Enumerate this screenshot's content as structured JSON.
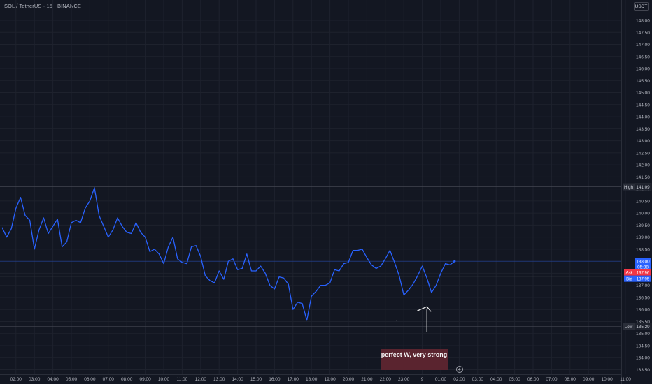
{
  "header": {
    "symbol_title": "SOL / TetherUS · 15 · BINANCE",
    "currency": "USDT"
  },
  "colors": {
    "background": "#131722",
    "line": "#2962ff",
    "grid": "#1e222d",
    "axis_text": "#b2b5be",
    "label_bg": "#2a2e39",
    "last_price_bg": "#2962ff",
    "ask": "#f23645",
    "bid": "#2962ff",
    "annotation_bg": "#5e2530"
  },
  "chart_data": {
    "type": "line",
    "ylim": [
      133.2,
      148.6
    ],
    "y_ticks": [
      "148.00",
      "147.50",
      "147.00",
      "146.50",
      "146.00",
      "145.50",
      "145.00",
      "144.50",
      "144.00",
      "143.50",
      "143.00",
      "142.50",
      "142.00",
      "141.50",
      "141.00",
      "140.50",
      "140.00",
      "139.50",
      "139.00",
      "138.50",
      "138.00",
      "137.50",
      "137.00",
      "136.50",
      "136.00",
      "135.50",
      "135.00",
      "134.50",
      "134.00",
      "133.50"
    ],
    "x_tick_labels": [
      "02:00",
      "03:00",
      "04:00",
      "05:00",
      "06:00",
      "07:00",
      "08:00",
      "09:00",
      "10:00",
      "11:00",
      "12:00",
      "13:00",
      "14:00",
      "15:00",
      "16:00",
      "17:00",
      "18:00",
      "19:00",
      "20:00",
      "21:00",
      "22:00",
      "23:00",
      "9",
      "01:00",
      "02:00",
      "03:00",
      "04:00",
      "05:00",
      "06:00",
      "07:00",
      "08:00",
      "09:00",
      "10:00",
      "11:00"
    ],
    "x_tick_index": [
      3,
      7,
      11,
      15,
      19,
      23,
      27,
      31,
      35,
      39,
      43,
      47,
      51,
      55,
      59,
      63,
      67,
      71,
      75,
      79,
      83,
      87,
      91,
      95,
      99,
      103,
      107,
      111,
      115,
      119,
      123,
      127,
      131,
      135
    ],
    "x_first_tick_pos": 4.5,
    "x_tick_spacing_per_hour": 4,
    "series": [
      {
        "values": [
          139.4,
          139.0,
          139.35,
          140.2,
          140.65,
          139.9,
          139.7,
          138.5,
          139.3,
          139.8,
          139.15,
          139.45,
          139.75,
          138.6,
          138.8,
          139.6,
          139.7,
          139.6,
          140.2,
          140.5,
          141.05,
          139.9,
          139.45,
          139.0,
          139.3,
          139.8,
          139.45,
          139.2,
          139.15,
          139.6,
          139.2,
          139.0,
          138.4,
          138.5,
          138.3,
          137.9,
          138.6,
          139.0,
          138.1,
          137.95,
          137.9,
          138.6,
          138.65,
          138.2,
          137.4,
          137.2,
          137.1,
          137.6,
          137.25,
          138.0,
          138.1,
          137.65,
          137.7,
          138.3,
          137.6,
          137.6,
          137.8,
          137.5,
          137.0,
          136.85,
          137.35,
          137.3,
          137.05,
          136.0,
          136.3,
          136.25,
          135.55,
          136.55,
          136.75,
          137.0,
          137.0,
          137.1,
          137.65,
          137.6,
          137.9,
          137.95,
          138.45,
          138.45,
          138.5,
          138.15,
          137.85,
          137.7,
          137.8,
          138.1,
          138.45,
          137.95,
          137.4,
          136.6,
          136.8,
          137.05,
          137.4,
          137.8,
          137.3,
          136.7,
          137.0,
          137.5,
          137.9,
          137.85,
          138.0
        ]
      }
    ],
    "high_label": "High",
    "high_value": "141.09",
    "low_label": "Low",
    "low_value": "135.29",
    "last_price": "138.00",
    "countdown": "05:38",
    "ask_label": "Ask",
    "ask_value": "137.96",
    "bid_label": "Bid",
    "bid_value": "137.95",
    "annotation": "perfect W, very strong",
    "arrow_from": [
      92.0,
      135.05
    ],
    "arrow_to": [
      92.0,
      136.0
    ],
    "dot_at": [
      85.5,
      135.55
    ],
    "grid": true
  }
}
